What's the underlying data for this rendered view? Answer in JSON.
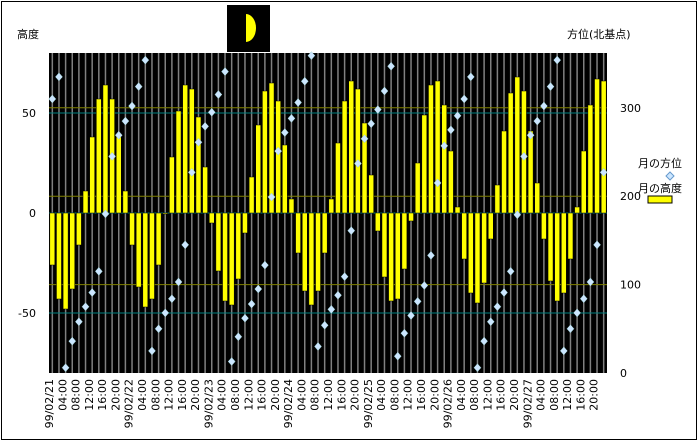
{
  "chart_data": {
    "type": "bar+scatter",
    "title_left_axis": "高度",
    "title_right_axis": "方位(北基点)",
    "moon_phase_icon": "first-quarter-moon-icon",
    "left_axis": {
      "label": "高度",
      "ylim": [
        -80,
        80
      ],
      "ticks": [
        50,
        0,
        -50
      ]
    },
    "right_axis": {
      "label": "方位(北基点)",
      "ylim": [
        0,
        362
      ],
      "ticks": [
        300,
        200,
        100,
        0
      ]
    },
    "x_tick_labels": [
      "99/02/21",
      "04:00",
      "08:00",
      "12:00",
      "16:00",
      "20:00",
      "99/02/22",
      "04:00",
      "08:00",
      "12:00",
      "16:00",
      "20:00",
      "99/02/23",
      "04:00",
      "08:00",
      "12:00",
      "16:00",
      "20:00",
      "99/02/24",
      "04:00",
      "08:00",
      "12:00",
      "16:00",
      "20:00",
      "99/02/25",
      "04:00",
      "08:00",
      "12:00",
      "16:00",
      "20:00",
      "99/02/26",
      "04:00",
      "08:00",
      "12:00",
      "16:00",
      "20:00",
      "99/02/27",
      "04:00",
      "08:00",
      "12:00",
      "16:00",
      "20:00"
    ],
    "x_interval_hours": 2,
    "legend": {
      "placement": "right",
      "azimuth_label": "月の方位",
      "altitude_label": "月の高度"
    },
    "series": [
      {
        "name": "月の高度",
        "kind": "bar",
        "axis": "left",
        "color": "#ffff00",
        "values": [
          -26,
          -43,
          -48,
          -38,
          -16,
          11,
          38,
          57,
          64,
          57,
          38,
          11,
          -16,
          -37,
          -47,
          -43,
          -26,
          0,
          28,
          51,
          64,
          62,
          48,
          23,
          -5,
          -29,
          -44,
          -46,
          -33,
          -10,
          18,
          44,
          61,
          65,
          56,
          34,
          7,
          -20,
          -39,
          -46,
          -39,
          -20,
          7,
          35,
          56,
          66,
          62,
          45,
          19,
          -9,
          -32,
          -44,
          -43,
          -28,
          -4,
          25,
          49,
          64,
          66,
          54,
          31,
          3,
          -23,
          -40,
          -45,
          -35,
          -13,
          14,
          41,
          60,
          68,
          61,
          41,
          15,
          -13,
          -34,
          -44,
          -40,
          -23,
          3,
          31,
          54,
          67,
          66
        ]
      },
      {
        "name": "月の方位",
        "kind": "scatter",
        "axis": "right",
        "color": "#cce6ff",
        "values": [
          310,
          335,
          6,
          36,
          58,
          75,
          91,
          115,
          180,
          245,
          269,
          285,
          302,
          324,
          354,
          25,
          50,
          68,
          84,
          103,
          145,
          227,
          261,
          279,
          295,
          315,
          341,
          13,
          41,
          62,
          78,
          95,
          122,
          199,
          251,
          272,
          288,
          306,
          330,
          359,
          30,
          54,
          72,
          88,
          109,
          161,
          237,
          265,
          282,
          298,
          319,
          347,
          19,
          45,
          65,
          81,
          99,
          133,
          215,
          257,
          275,
          291,
          310,
          335,
          6,
          36,
          58,
          75,
          91,
          115,
          179,
          245,
          269,
          285,
          302,
          324,
          354,
          25,
          50,
          68,
          84,
          103,
          145,
          227
        ]
      }
    ],
    "grid_colors": {
      "left": "#008080",
      "right": "#808000",
      "vertical": "#808080"
    }
  }
}
